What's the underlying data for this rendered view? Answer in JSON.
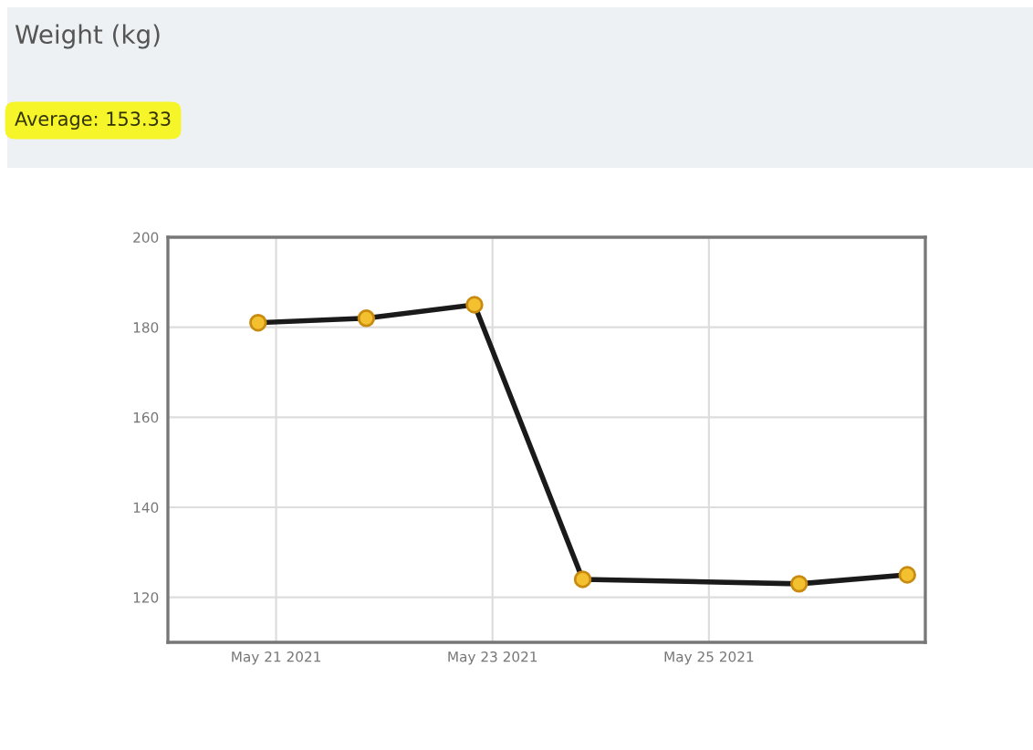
{
  "chart_data": {
    "type": "line",
    "title": "Weight (kg)",
    "annotations": [
      "Average: 153.33"
    ],
    "x": [
      "2021-05-20T20:00",
      "2021-05-21T20:00",
      "2021-05-22T20:00",
      "2021-05-23T20:00",
      "2021-05-25T20:00",
      "2021-05-26T20:00"
    ],
    "series": [
      {
        "color": "#1a1a1a",
        "values": [
          181,
          182,
          185,
          124,
          123,
          125
        ]
      }
    ],
    "xlim": [
      "2021-05-20",
      "2021-05-27"
    ],
    "xticks": [
      {
        "value": "2021-05-21",
        "label": "May 21 2021"
      },
      {
        "value": "2021-05-23",
        "label": "May 23 2021"
      },
      {
        "value": "2021-05-25",
        "label": "May 25 2021"
      }
    ],
    "ylim": [
      110,
      200
    ],
    "yticks": [
      120,
      140,
      160,
      180,
      200
    ],
    "grid": true,
    "marker": "circle",
    "line_style": "solid"
  }
}
